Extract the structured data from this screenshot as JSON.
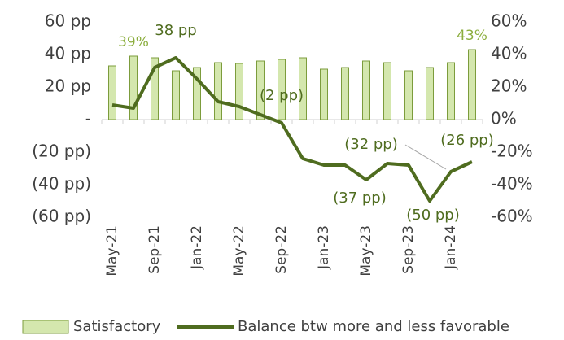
{
  "chart_data": {
    "type": "bar-line",
    "categories": [
      "May-21",
      null,
      "Sep-21",
      null,
      "Jan-22",
      null,
      "May-22",
      null,
      "Sep-22",
      null,
      "Jan-23",
      null,
      "May-23",
      null,
      "Sep-23",
      null,
      "Jan-24",
      null
    ],
    "series": [
      {
        "name": "Satisfactory",
        "type": "bar",
        "axis": "y2",
        "color": "#d4e7ae",
        "edge": "#7c9c3c",
        "label_color": "#8cae3e",
        "values": [
          33,
          39,
          38,
          30,
          32,
          35,
          34.5,
          36,
          37,
          38,
          31,
          32,
          36,
          35,
          30,
          32,
          35,
          43
        ],
        "value_labels": [
          null,
          "39%",
          null,
          null,
          null,
          null,
          null,
          null,
          null,
          null,
          null,
          null,
          null,
          null,
          null,
          null,
          null,
          "43%"
        ]
      },
      {
        "name": "Balance btw more and less favorable",
        "type": "line",
        "color": "#4f6c1f",
        "label_color": "#4f6c1f",
        "values": [
          9,
          7,
          32,
          38,
          25,
          11,
          8,
          3,
          -2,
          -24,
          -28,
          -28,
          -37,
          -27,
          -28,
          -50,
          -32,
          -26
        ],
        "value_labels": [
          null,
          null,
          null,
          "38 pp",
          null,
          null,
          null,
          null,
          "(2 pp)",
          null,
          null,
          null,
          "(37 pp)",
          null,
          null,
          "(50 pp)",
          "(32 pp)",
          "(26 pp)"
        ]
      }
    ],
    "ylim": [
      -60,
      60
    ],
    "yticks": [
      {
        "value": 60,
        "label": "60 pp"
      },
      {
        "value": 40,
        "label": "40 pp"
      },
      {
        "value": 20,
        "label": "20 pp"
      },
      {
        "value": 0,
        "label": "-"
      },
      {
        "value": -20,
        "label": "(20 pp)"
      },
      {
        "value": -40,
        "label": "(40 pp)"
      },
      {
        "value": -60,
        "label": "(60 pp)"
      }
    ],
    "y2lim": [
      -60,
      60
    ],
    "y2ticks": [
      {
        "value": 60,
        "label": "60%"
      },
      {
        "value": 40,
        "label": "40%"
      },
      {
        "value": 20,
        "label": "20%"
      },
      {
        "value": 0,
        "label": "0%"
      },
      {
        "value": -20,
        "label": "-20%"
      },
      {
        "value": -40,
        "label": "-40%"
      },
      {
        "value": -60,
        "label": "-60%"
      }
    ],
    "legend": "bottom"
  }
}
